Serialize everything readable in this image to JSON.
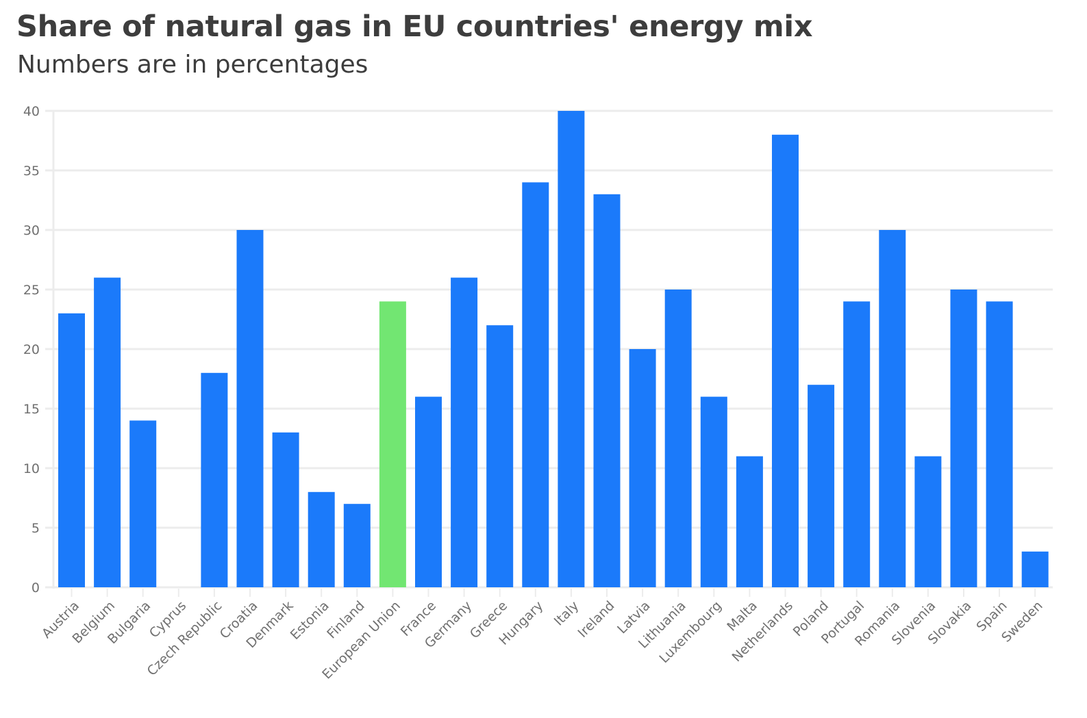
{
  "header": {
    "title": "Share of natural gas in EU countries' energy mix",
    "subtitle": "Numbers are in percentages"
  },
  "colors": {
    "bar": "#1b7afa",
    "highlight": "#72e672",
    "grid": "#ececec",
    "text": "#707070"
  },
  "chart_data": {
    "type": "bar",
    "title": "Share of natural gas in EU countries' energy mix",
    "subtitle": "Numbers are in percentages",
    "xlabel": "",
    "ylabel": "",
    "ylim": [
      0,
      40
    ],
    "yticks": [
      0,
      5,
      10,
      15,
      20,
      25,
      30,
      35,
      40
    ],
    "grid": true,
    "highlighted_category": "European Union",
    "categories": [
      "Austria",
      "Belgium",
      "Bulgaria",
      "Cyprus",
      "Czech Republic",
      "Croatia",
      "Denmark",
      "Estonia",
      "Finland",
      "European Union",
      "France",
      "Germany",
      "Greece",
      "Hungary",
      "Italy",
      "Ireland",
      "Latvia",
      "Lithuania",
      "Luxembourg",
      "Malta",
      "Netherlands",
      "Poland",
      "Portugal",
      "Romania",
      "Slovenia",
      "Slovakia",
      "Spain",
      "Sweden"
    ],
    "values": [
      23,
      26,
      14,
      0,
      18,
      30,
      13,
      8,
      7,
      24,
      16,
      26,
      22,
      34,
      40,
      33,
      20,
      25,
      16,
      11,
      38,
      17,
      24,
      30,
      11,
      25,
      24,
      3
    ]
  }
}
